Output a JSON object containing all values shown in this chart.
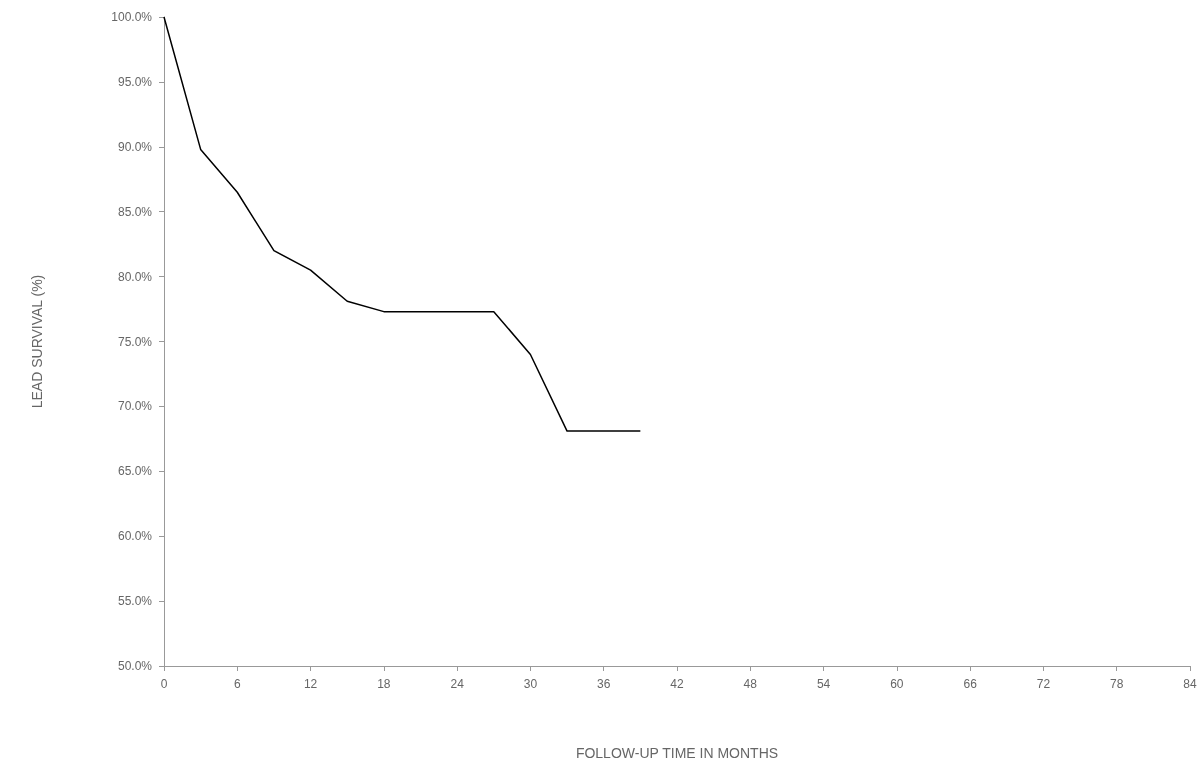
{
  "chart_data": {
    "type": "line",
    "xlabel": "FOLLOW-UP TIME IN MONTHS",
    "ylabel": "LEAD SURVIVAL (%)",
    "x": [
      0,
      3,
      6,
      9,
      12,
      15,
      18,
      27,
      30,
      33,
      39
    ],
    "series": [
      {
        "color": "#000000",
        "values": [
          100,
          89.8,
          86.5,
          82.0,
          80.5,
          78.1,
          77.3,
          77.3,
          74.0,
          68.1,
          68.1
        ]
      }
    ],
    "xlim": [
      0,
      84
    ],
    "xticks": [
      0,
      6,
      12,
      18,
      24,
      30,
      36,
      42,
      48,
      54,
      60,
      66,
      72,
      78,
      84
    ],
    "ylim": [
      50,
      100
    ],
    "yticks": [
      {
        "value": 50,
        "label": "50.0%"
      },
      {
        "value": 55,
        "label": "55.0%"
      },
      {
        "value": 60,
        "label": "60.0%"
      },
      {
        "value": 65,
        "label": "65.0%"
      },
      {
        "value": 70,
        "label": "70.0%"
      },
      {
        "value": 75,
        "label": "75.0%"
      },
      {
        "value": 80,
        "label": "80.0%"
      },
      {
        "value": 85,
        "label": "85.0%"
      },
      {
        "value": 90,
        "label": "90.0%"
      },
      {
        "value": 95,
        "label": "95.0%"
      },
      {
        "value": 100,
        "label": "100.0%"
      }
    ],
    "grid": false,
    "marker": "none",
    "line_style": "solid"
  }
}
